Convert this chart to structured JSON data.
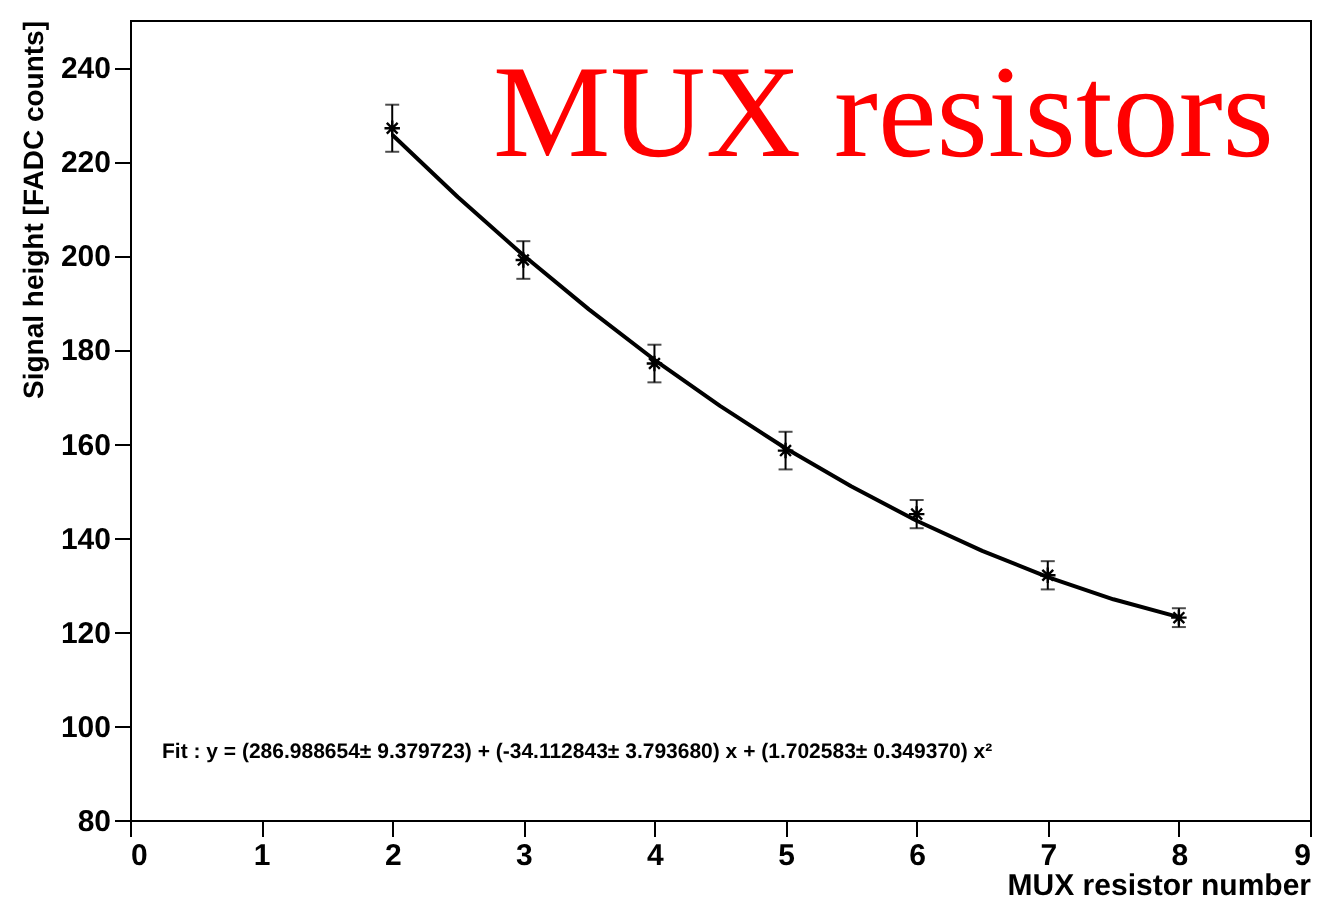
{
  "chart_data": {
    "type": "scatter",
    "title": "MUX resistors",
    "xlabel": "MUX resistor number",
    "ylabel": "Signal height [FADC counts]",
    "x": [
      2,
      3,
      4,
      5,
      6,
      7,
      8
    ],
    "series": [
      {
        "color": "#000000",
        "marker": "cross",
        "values": [
          227,
          199,
          177,
          158.5,
          145,
          132,
          123
        ],
        "errors": [
          5,
          4,
          4,
          4,
          3,
          3,
          2
        ]
      },
      {
        "type": "line",
        "color": "#000000",
        "line_style": "solid",
        "x": [
          2,
          2.5,
          3,
          3.5,
          4,
          4.5,
          5,
          5.5,
          6,
          6.5,
          7,
          7.5,
          8
        ],
        "values": [
          225.6,
          212.4,
          200,
          188.5,
          177.8,
          168,
          159,
          150.9,
          143.6,
          137.2,
          131.6,
          126.9,
          123.1
        ]
      }
    ],
    "xlim": [
      0,
      9
    ],
    "xticks": [
      0,
      1,
      2,
      3,
      4,
      5,
      6,
      7,
      8,
      9
    ],
    "ylim": [
      80,
      250
    ],
    "yticks": [
      80,
      100,
      120,
      140,
      160,
      180,
      200,
      220,
      240
    ],
    "grid": false,
    "annotations": [
      "Fit : y = (286.988654± 9.379723) + (-34.112843± 3.793680) x + (1.702583± 0.349370) x²"
    ]
  }
}
